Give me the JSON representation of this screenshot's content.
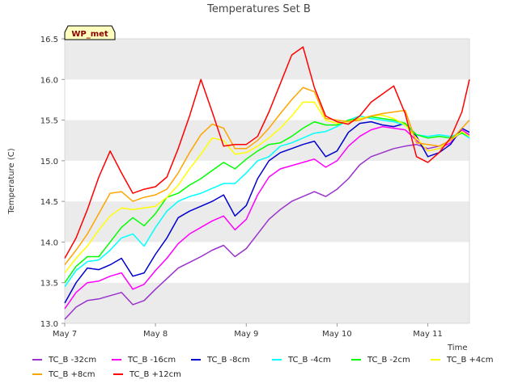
{
  "chart_data": {
    "type": "line",
    "title": "Temperatures Set B",
    "xlabel": "Time",
    "ylabel": "Temperature (C)",
    "xlim": [
      "2021-05-07",
      "2021-05-11T11:00"
    ],
    "ylim": [
      13.0,
      16.5
    ],
    "x_ticks": [
      "May 7",
      "May 8",
      "May 9",
      "May 10",
      "May 11"
    ],
    "y_ticks": [
      "13.0",
      "13.5",
      "14.0",
      "14.5",
      "15.0",
      "15.5",
      "16.0",
      "16.5"
    ],
    "grid": "alternating horizontal bands",
    "badge": "WP_met",
    "legend_position": "bottom",
    "x": [
      "2021-05-07T00:00",
      "2021-05-07T03:00",
      "2021-05-07T06:00",
      "2021-05-07T09:00",
      "2021-05-07T12:00",
      "2021-05-07T15:00",
      "2021-05-07T18:00",
      "2021-05-07T21:00",
      "2021-05-08T00:00",
      "2021-05-08T03:00",
      "2021-05-08T06:00",
      "2021-05-08T09:00",
      "2021-05-08T12:00",
      "2021-05-08T15:00",
      "2021-05-08T18:00",
      "2021-05-08T21:00",
      "2021-05-09T00:00",
      "2021-05-09T03:00",
      "2021-05-09T06:00",
      "2021-05-09T09:00",
      "2021-05-09T12:00",
      "2021-05-09T15:00",
      "2021-05-09T18:00",
      "2021-05-09T21:00",
      "2021-05-10T00:00",
      "2021-05-10T03:00",
      "2021-05-10T06:00",
      "2021-05-10T09:00",
      "2021-05-10T12:00",
      "2021-05-10T15:00",
      "2021-05-10T18:00",
      "2021-05-10T21:00",
      "2021-05-11T00:00",
      "2021-05-11T03:00",
      "2021-05-11T06:00",
      "2021-05-11T09:00",
      "2021-05-11T11:00"
    ],
    "series": [
      {
        "name": "TC_B -32cm",
        "color": "#9a32cd",
        "values": [
          13.05,
          13.2,
          13.28,
          13.3,
          13.34,
          13.38,
          13.23,
          13.28,
          13.42,
          13.55,
          13.68,
          13.75,
          13.82,
          13.9,
          13.96,
          13.82,
          13.92,
          14.1,
          14.28,
          14.4,
          14.5,
          14.56,
          14.62,
          14.56,
          14.65,
          14.78,
          14.95,
          15.05,
          15.1,
          15.15,
          15.18,
          15.2,
          15.15,
          15.18,
          15.25,
          15.35,
          15.32
        ]
      },
      {
        "name": "TC_B -16cm",
        "color": "#ff00ff",
        "values": [
          13.18,
          13.38,
          13.5,
          13.52,
          13.58,
          13.62,
          13.42,
          13.48,
          13.65,
          13.8,
          13.98,
          14.1,
          14.18,
          14.26,
          14.32,
          14.15,
          14.28,
          14.58,
          14.8,
          14.9,
          14.94,
          14.98,
          15.02,
          14.92,
          15.0,
          15.18,
          15.3,
          15.38,
          15.42,
          15.4,
          15.38,
          15.25,
          15.12,
          15.15,
          15.22,
          15.38,
          15.32
        ]
      },
      {
        "name": "TC_B -8cm",
        "color": "#0000cd",
        "values": [
          13.25,
          13.5,
          13.68,
          13.66,
          13.72,
          13.8,
          13.58,
          13.62,
          13.85,
          14.05,
          14.3,
          14.38,
          14.44,
          14.5,
          14.58,
          14.32,
          14.45,
          14.78,
          15.0,
          15.1,
          15.15,
          15.2,
          15.24,
          15.05,
          15.12,
          15.35,
          15.46,
          15.48,
          15.44,
          15.42,
          15.46,
          15.3,
          15.05,
          15.1,
          15.2,
          15.4,
          15.35
        ]
      },
      {
        "name": "TC_B -4cm",
        "color": "#00ffff",
        "values": [
          13.45,
          13.65,
          13.76,
          13.78,
          13.9,
          14.05,
          14.1,
          13.95,
          14.18,
          14.38,
          14.5,
          14.56,
          14.6,
          14.66,
          14.72,
          14.72,
          14.85,
          15.0,
          15.05,
          15.18,
          15.22,
          15.28,
          15.34,
          15.36,
          15.42,
          15.5,
          15.55,
          15.52,
          15.5,
          15.48,
          15.44,
          15.32,
          15.3,
          15.32,
          15.3,
          15.34,
          15.28
        ]
      },
      {
        "name": "TC_B -2cm",
        "color": "#00ff00",
        "values": [
          13.5,
          13.7,
          13.82,
          13.82,
          14.0,
          14.18,
          14.3,
          14.2,
          14.35,
          14.55,
          14.6,
          14.7,
          14.78,
          14.88,
          14.98,
          14.9,
          15.02,
          15.12,
          15.2,
          15.22,
          15.3,
          15.4,
          15.48,
          15.44,
          15.44,
          15.5,
          15.52,
          15.54,
          15.52,
          15.5,
          15.46,
          15.32,
          15.28,
          15.3,
          15.28,
          15.34,
          15.3
        ]
      },
      {
        "name": "TC_B +4cm",
        "color": "#ffff00",
        "values": [
          13.62,
          13.8,
          13.95,
          14.15,
          14.32,
          14.42,
          14.4,
          14.42,
          14.44,
          14.55,
          14.7,
          14.9,
          15.08,
          15.28,
          15.25,
          15.08,
          15.1,
          15.18,
          15.28,
          15.4,
          15.55,
          15.72,
          15.72,
          15.5,
          15.46,
          15.48,
          15.52,
          15.55,
          15.56,
          15.52,
          15.44,
          15.28,
          15.12,
          15.15,
          15.25,
          15.36,
          15.3
        ]
      },
      {
        "name": "TC_B +8cm",
        "color": "#ffa500",
        "values": [
          13.72,
          13.9,
          14.1,
          14.35,
          14.6,
          14.62,
          14.5,
          14.55,
          14.58,
          14.65,
          14.85,
          15.1,
          15.32,
          15.45,
          15.4,
          15.15,
          15.15,
          15.25,
          15.4,
          15.58,
          15.75,
          15.9,
          15.85,
          15.52,
          15.5,
          15.48,
          15.5,
          15.55,
          15.58,
          15.6,
          15.62,
          15.22,
          15.2,
          15.18,
          15.25,
          15.4,
          15.5
        ]
      },
      {
        "name": "TC_B +12cm",
        "color": "#ff0000",
        "values": [
          13.8,
          14.05,
          14.4,
          14.8,
          15.12,
          14.85,
          14.6,
          14.65,
          14.68,
          14.8,
          15.15,
          15.55,
          16.0,
          15.6,
          15.18,
          15.2,
          15.2,
          15.3,
          15.6,
          15.95,
          16.3,
          16.4,
          15.9,
          15.55,
          15.48,
          15.45,
          15.55,
          15.72,
          15.82,
          15.92,
          15.58,
          15.05,
          14.98,
          15.1,
          15.28,
          15.6,
          16.0
        ]
      }
    ]
  }
}
